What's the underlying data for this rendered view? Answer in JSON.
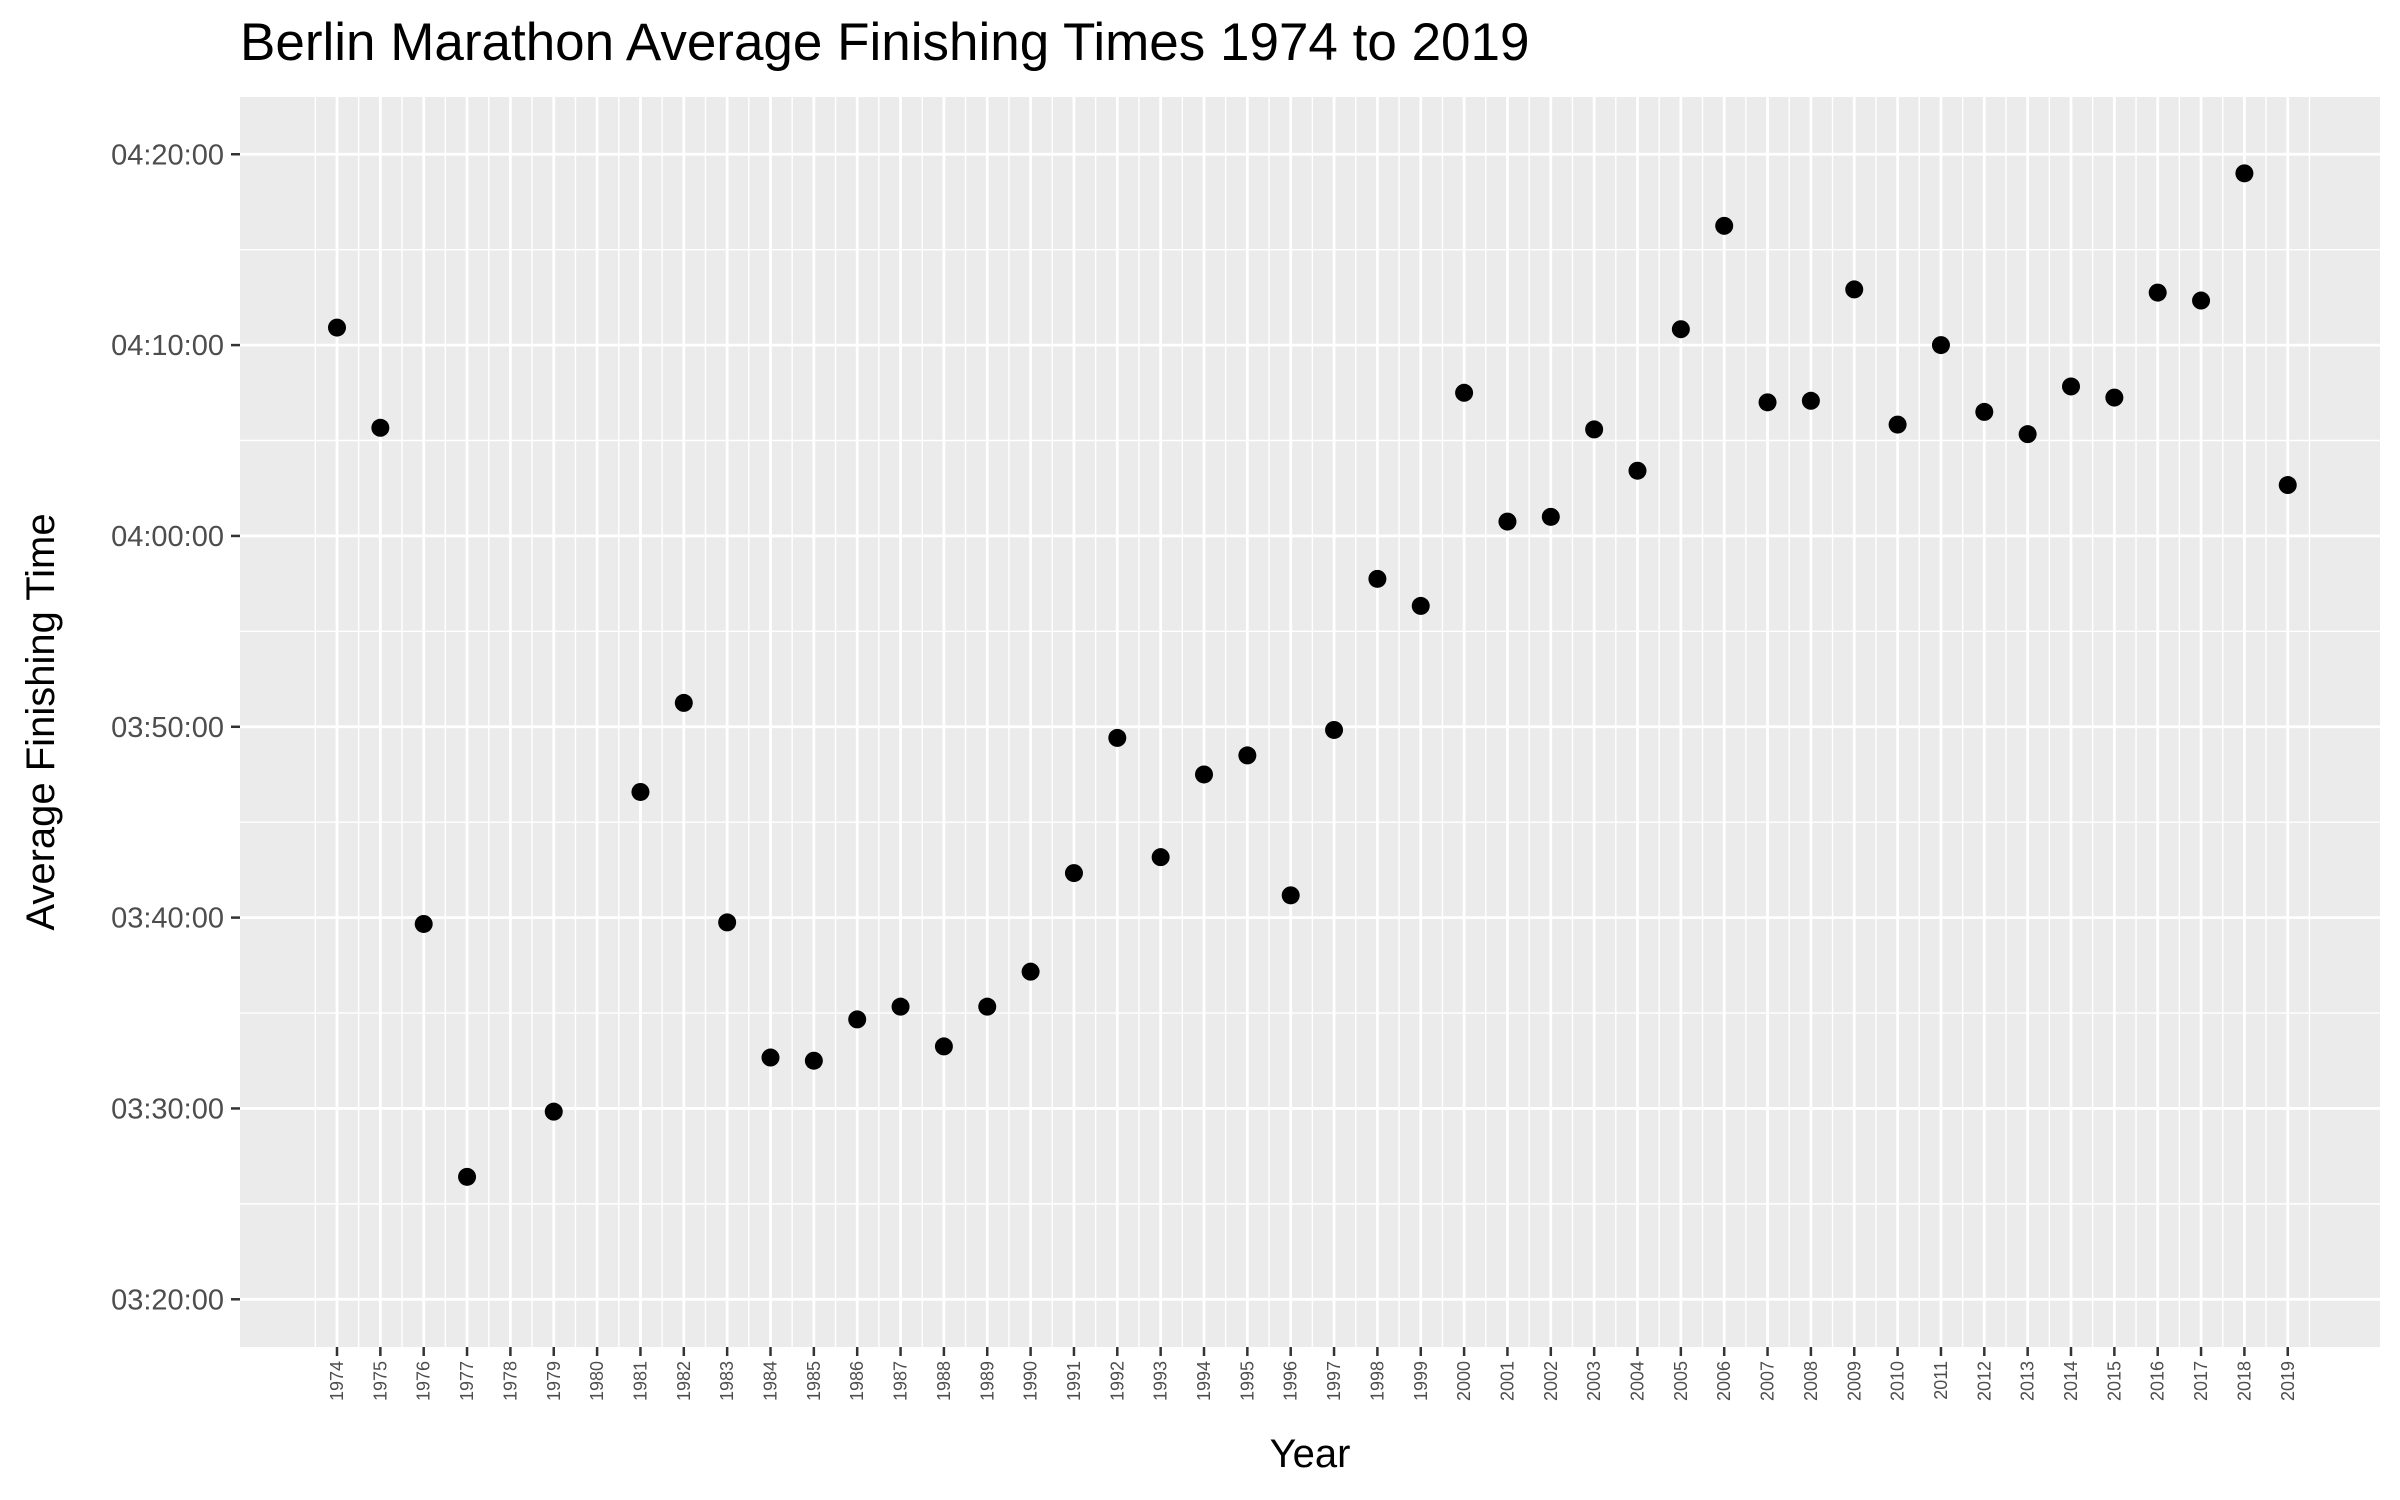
{
  "chart_data": {
    "type": "scatter",
    "title": "Berlin Marathon Average Finishing Times 1974 to 2019",
    "xlabel": "Year",
    "ylabel": "Average Finishing Time",
    "x_categories": [
      "1974",
      "1975",
      "1976",
      "1977",
      "1978",
      "1979",
      "1980",
      "1981",
      "1982",
      "1983",
      "1984",
      "1985",
      "1986",
      "1987",
      "1988",
      "1989",
      "1990",
      "1991",
      "1992",
      "1993",
      "1994",
      "1995",
      "1996",
      "1997",
      "1998",
      "1999",
      "2000",
      "2001",
      "2002",
      "2003",
      "2004",
      "2005",
      "2006",
      "2007",
      "2008",
      "2009",
      "2010",
      "2011",
      "2012",
      "2013",
      "2014",
      "2015",
      "2016",
      "2017",
      "2018",
      "2019"
    ],
    "y_ticks": [
      "03:20:00",
      "03:30:00",
      "03:40:00",
      "03:50:00",
      "04:00:00",
      "04:10:00",
      "04:20:00"
    ],
    "ylim": [
      "03:17:30",
      "04:23:00"
    ],
    "grid": true,
    "background": "#ebebeb",
    "grid_color": "#ffffff",
    "point_color": "#000000",
    "points": [
      {
        "x": "1974",
        "y": "04:10:55"
      },
      {
        "x": "1975",
        "y": "04:05:40"
      },
      {
        "x": "1976",
        "y": "03:39:40"
      },
      {
        "x": "1977",
        "y": "03:26:25"
      },
      {
        "x": "1979",
        "y": "03:29:50"
      },
      {
        "x": "1981",
        "y": "03:46:35"
      },
      {
        "x": "1982",
        "y": "03:51:15"
      },
      {
        "x": "1983",
        "y": "03:39:45"
      },
      {
        "x": "1984",
        "y": "03:32:40"
      },
      {
        "x": "1985",
        "y": "03:32:30"
      },
      {
        "x": "1986",
        "y": "03:34:40"
      },
      {
        "x": "1987",
        "y": "03:35:20"
      },
      {
        "x": "1988",
        "y": "03:33:15"
      },
      {
        "x": "1989",
        "y": "03:35:20"
      },
      {
        "x": "1990",
        "y": "03:37:10"
      },
      {
        "x": "1991",
        "y": "03:42:20"
      },
      {
        "x": "1992",
        "y": "03:49:25"
      },
      {
        "x": "1993",
        "y": "03:43:10"
      },
      {
        "x": "1994",
        "y": "03:47:30"
      },
      {
        "x": "1995",
        "y": "03:48:30"
      },
      {
        "x": "1996",
        "y": "03:41:10"
      },
      {
        "x": "1997",
        "y": "03:49:50"
      },
      {
        "x": "1998",
        "y": "03:57:45"
      },
      {
        "x": "1999",
        "y": "03:56:20"
      },
      {
        "x": "2000",
        "y": "04:07:30"
      },
      {
        "x": "2001",
        "y": "04:00:45"
      },
      {
        "x": "2002",
        "y": "04:01:00"
      },
      {
        "x": "2003",
        "y": "04:05:35"
      },
      {
        "x": "2004",
        "y": "04:03:25"
      },
      {
        "x": "2005",
        "y": "04:10:50"
      },
      {
        "x": "2006",
        "y": "04:16:15"
      },
      {
        "x": "2007",
        "y": "04:07:00"
      },
      {
        "x": "2008",
        "y": "04:07:05"
      },
      {
        "x": "2009",
        "y": "04:12:55"
      },
      {
        "x": "2010",
        "y": "04:05:50"
      },
      {
        "x": "2011",
        "y": "04:10:00"
      },
      {
        "x": "2012",
        "y": "04:06:30"
      },
      {
        "x": "2013",
        "y": "04:05:20"
      },
      {
        "x": "2014",
        "y": "04:07:50"
      },
      {
        "x": "2015",
        "y": "04:07:15"
      },
      {
        "x": "2016",
        "y": "04:12:45"
      },
      {
        "x": "2017",
        "y": "04:12:20"
      },
      {
        "x": "2018",
        "y": "04:19:00"
      },
      {
        "x": "2019",
        "y": "04:02:40"
      }
    ]
  }
}
